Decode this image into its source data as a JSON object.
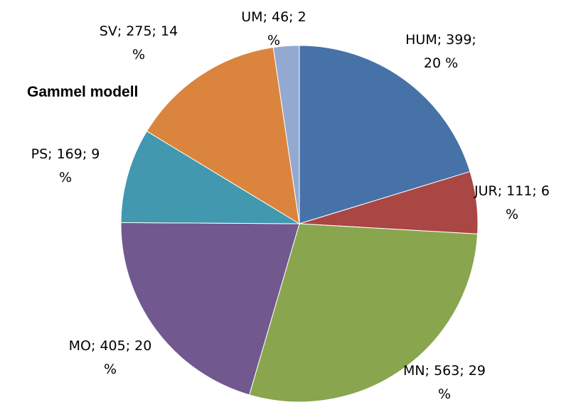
{
  "chart_data": {
    "type": "pie",
    "title": "Gammel modell",
    "values": [
      399,
      111,
      563,
      405,
      169,
      275,
      46
    ],
    "value_labels": [
      "HUM;  399; 20 %",
      "JUR;  111; 6 %",
      "MN;  563; 29 %",
      "MO;  405; 20 %",
      "PS;  169; 9 %",
      "SV;  275; 14 %",
      "UM;  46; 2 %"
    ],
    "colors": [
      "#4672a8",
      "#aa4643",
      "#89a54e",
      "#71588f",
      "#4198af",
      "#db843d",
      "#93a9cf"
    ]
  }
}
